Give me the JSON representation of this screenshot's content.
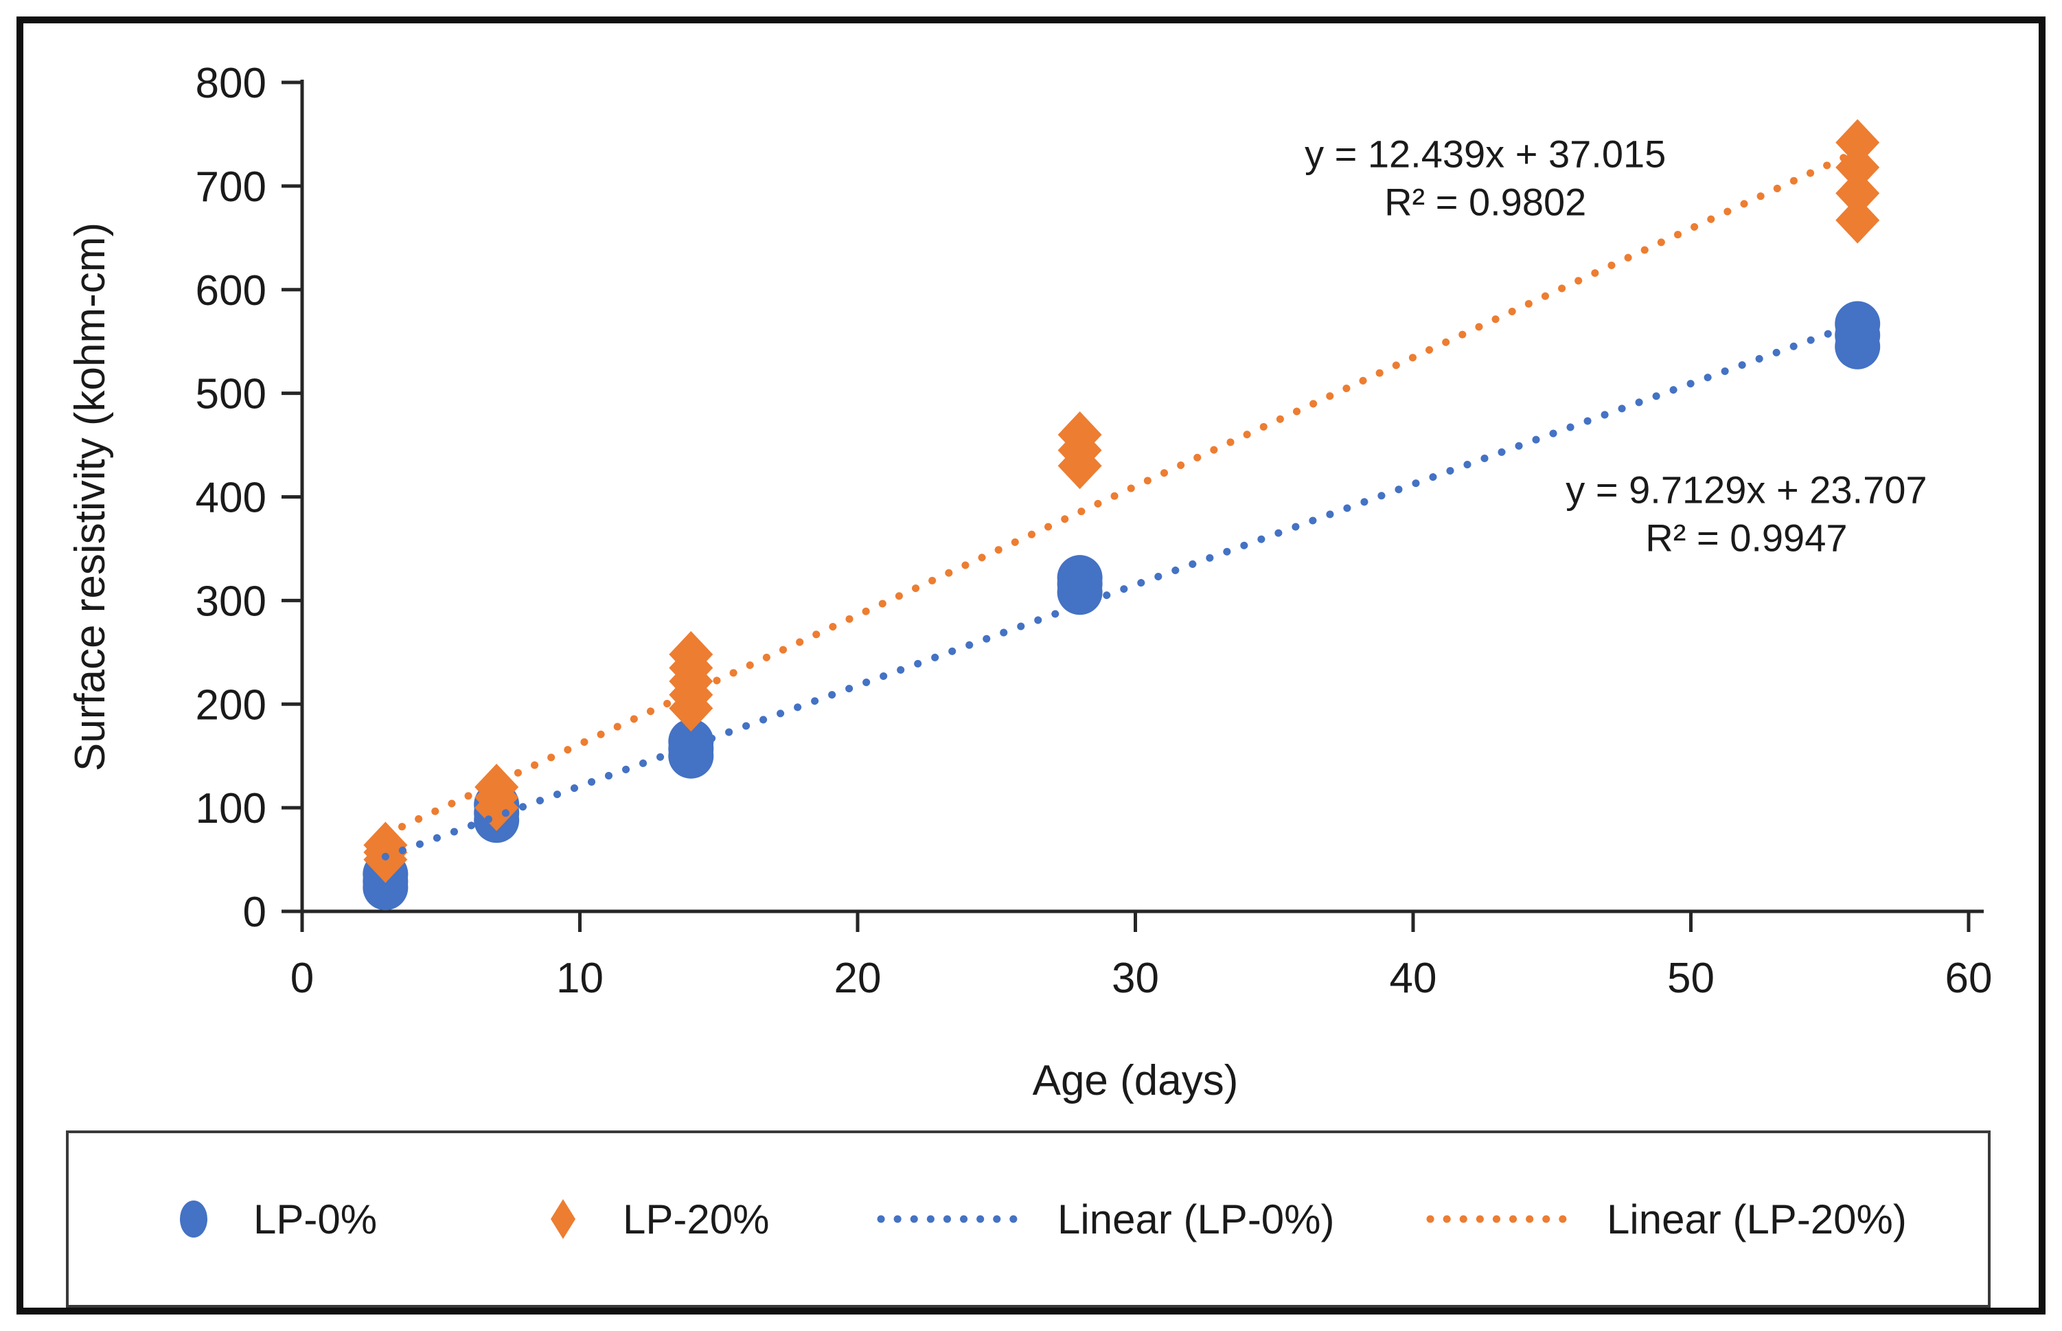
{
  "colors": {
    "series_blue": "#4472C4",
    "series_orange": "#ED7D31",
    "axis": "#262626",
    "text": "#1a1a1a",
    "frame": "#101010",
    "legend_border": "#3a3a3a"
  },
  "chart_data": {
    "type": "scatter",
    "title": "",
    "xlabel": "Age (days)",
    "ylabel": "Surface resistivity (kohm-cm)",
    "xlim": [
      0,
      60
    ],
    "ylim": [
      0,
      800
    ],
    "xticks": [
      "0",
      "10",
      "20",
      "30",
      "40",
      "50",
      "60"
    ],
    "yticks": [
      "0",
      "100",
      "200",
      "300",
      "400",
      "500",
      "600",
      "700",
      "800"
    ],
    "grid": false,
    "legend_position": "bottom",
    "series": [
      {
        "name": "LP-0%",
        "marker": "circle",
        "color": "#4472C4",
        "points": [
          [
            3,
            23
          ],
          [
            3,
            29
          ],
          [
            3,
            36
          ],
          [
            7,
            88
          ],
          [
            7,
            95
          ],
          [
            7,
            103
          ],
          [
            14,
            150
          ],
          [
            14,
            157
          ],
          [
            14,
            164
          ],
          [
            28,
            308
          ],
          [
            28,
            316
          ],
          [
            28,
            322
          ],
          [
            56,
            545
          ],
          [
            56,
            556
          ],
          [
            56,
            567
          ]
        ]
      },
      {
        "name": "LP-20%",
        "marker": "diamond",
        "color": "#ED7D31",
        "points": [
          [
            3,
            50
          ],
          [
            3,
            57
          ],
          [
            3,
            64
          ],
          [
            7,
            100
          ],
          [
            7,
            110
          ],
          [
            7,
            120
          ],
          [
            14,
            196
          ],
          [
            14,
            209
          ],
          [
            14,
            222
          ],
          [
            14,
            235
          ],
          [
            14,
            248
          ],
          [
            28,
            430
          ],
          [
            28,
            445
          ],
          [
            28,
            460
          ],
          [
            56,
            667
          ],
          [
            56,
            693
          ],
          [
            56,
            718
          ],
          [
            56,
            742
          ]
        ]
      }
    ],
    "trendlines": [
      {
        "name": "Linear (LP-0%)",
        "color": "#4472C4",
        "style": "dotted",
        "slope": 9.7129,
        "intercept": 23.707,
        "x_start": 3,
        "x_end": 56.5
      },
      {
        "name": "Linear (LP-20%)",
        "color": "#ED7D31",
        "style": "dotted",
        "slope": 12.439,
        "intercept": 37.015,
        "x_start": 3,
        "x_end": 56.5
      }
    ],
    "annotations": [
      {
        "series": "LP-20%",
        "lines": [
          "y = 12.439x + 37.015",
          "R² = 0.9802"
        ],
        "x": 42.6,
        "y": 718
      },
      {
        "series": "LP-0%",
        "lines": [
          "y = 9.7129x + 23.707",
          "R² = 0.9947"
        ],
        "x": 52.0,
        "y": 394
      }
    ],
    "legend": {
      "items": [
        {
          "label": "LP-0%",
          "marker": "circle",
          "color": "#4472C4"
        },
        {
          "label": "LP-20%",
          "marker": "diamond",
          "color": "#ED7D31"
        },
        {
          "label": "Linear (LP-0%)",
          "marker": "dotted-line",
          "color": "#4472C4"
        },
        {
          "label": "Linear (LP-20%)",
          "marker": "dotted-line",
          "color": "#ED7D31"
        }
      ]
    }
  }
}
